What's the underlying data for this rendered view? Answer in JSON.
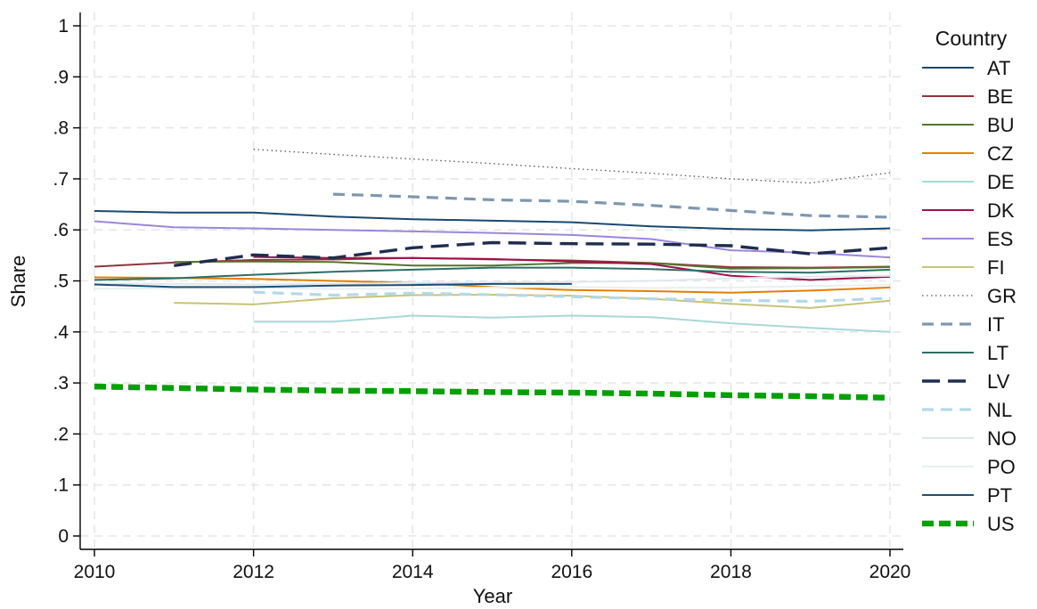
{
  "chart_data": {
    "type": "line",
    "xlabel": "Year",
    "ylabel": "Share",
    "xlim": [
      2010,
      2020
    ],
    "ylim": [
      0,
      1
    ],
    "x_ticks": [
      2010,
      2012,
      2014,
      2016,
      2018,
      2020
    ],
    "y_ticks": [
      0,
      0.1,
      0.2,
      0.3,
      0.4,
      0.5,
      0.6,
      0.7,
      0.8,
      0.9,
      1
    ],
    "y_tick_labels": [
      "0",
      ".1",
      ".2",
      ".3",
      ".4",
      ".5",
      ".6",
      ".7",
      ".8",
      ".9",
      "1"
    ],
    "x_tick_labels": [
      "2010",
      "2012",
      "2014",
      "2016",
      "2018",
      "2020"
    ],
    "grid": true,
    "legend": {
      "title": "Country",
      "position": "right"
    },
    "series": [
      {
        "name": "AT",
        "color": "#1a476f",
        "dash": "solid",
        "x": [
          2010,
          2011,
          2012,
          2013,
          2014,
          2015,
          2016,
          2017,
          2018,
          2019,
          2020
        ],
        "y": [
          0.637,
          0.634,
          0.634,
          0.626,
          0.621,
          0.618,
          0.615,
          0.607,
          0.602,
          0.599,
          0.603
        ]
      },
      {
        "name": "BE",
        "color": "#90353b",
        "dash": "solid",
        "x": [
          2010,
          2011,
          2012,
          2013,
          2014,
          2015,
          2016,
          2017,
          2018,
          2019,
          2020
        ],
        "y": [
          0.528,
          0.536,
          0.541,
          0.542,
          0.545,
          0.542,
          0.54,
          0.535,
          0.527,
          0.526,
          0.528
        ]
      },
      {
        "name": "BU",
        "color": "#55752f",
        "dash": "solid",
        "x": [
          2011,
          2012,
          2013,
          2014,
          2015,
          2016,
          2017,
          2018,
          2019,
          2020
        ],
        "y": [
          0.537,
          0.538,
          0.537,
          0.53,
          0.53,
          0.535,
          0.535,
          0.524,
          0.525,
          0.527
        ]
      },
      {
        "name": "CZ",
        "color": "#e37e00",
        "dash": "solid",
        "x": [
          2010,
          2011,
          2012,
          2013,
          2014,
          2015,
          2016,
          2017,
          2018,
          2019,
          2020
        ],
        "y": [
          0.507,
          0.506,
          0.504,
          0.5,
          0.496,
          0.488,
          0.482,
          0.48,
          0.477,
          0.481,
          0.487
        ]
      },
      {
        "name": "DE",
        "color": "#a8d8d8",
        "dash": "solid",
        "x": [
          2012,
          2013,
          2014,
          2015,
          2016,
          2017,
          2018,
          2019,
          2020
        ],
        "y": [
          0.42,
          0.42,
          0.432,
          0.428,
          0.432,
          0.429,
          0.417,
          0.408,
          0.4
        ]
      },
      {
        "name": "DK",
        "color": "#a0124a",
        "dash": "solid",
        "x": [
          2012,
          2013,
          2014,
          2015,
          2016,
          2017,
          2018,
          2019,
          2020
        ],
        "y": [
          0.547,
          0.545,
          0.545,
          0.543,
          0.538,
          0.533,
          0.51,
          0.502,
          0.508
        ]
      },
      {
        "name": "ES",
        "color": "#9b87d8",
        "dash": "solid",
        "x": [
          2010,
          2011,
          2012,
          2013,
          2014,
          2015,
          2016,
          2017,
          2018,
          2019,
          2020
        ],
        "y": [
          0.617,
          0.605,
          0.603,
          0.6,
          0.597,
          0.594,
          0.59,
          0.582,
          0.56,
          0.555,
          0.546
        ]
      },
      {
        "name": "FI",
        "color": "#c9c27a",
        "dash": "solid",
        "x": [
          2011,
          2012,
          2013,
          2014,
          2015,
          2016,
          2017,
          2018,
          2019,
          2020
        ],
        "y": [
          0.457,
          0.454,
          0.466,
          0.472,
          0.473,
          0.471,
          0.465,
          0.455,
          0.447,
          0.461
        ]
      },
      {
        "name": "GR",
        "color": "#555555",
        "dash": "dot",
        "x": [
          2012,
          2013,
          2014,
          2015,
          2016,
          2017,
          2018,
          2019,
          2020
        ],
        "y": [
          0.758,
          0.748,
          0.739,
          0.73,
          0.72,
          0.711,
          0.7,
          0.692,
          0.712
        ]
      },
      {
        "name": "IT",
        "color": "#7d97ad",
        "dash": "dash",
        "x": [
          2013,
          2014,
          2015,
          2016,
          2017,
          2018,
          2019,
          2020
        ],
        "y": [
          0.67,
          0.665,
          0.659,
          0.656,
          0.648,
          0.638,
          0.628,
          0.625
        ]
      },
      {
        "name": "LT",
        "color": "#2d6d66",
        "dash": "solid",
        "x": [
          2010,
          2011,
          2012,
          2013,
          2014,
          2015,
          2016,
          2017,
          2018,
          2019,
          2020
        ],
        "y": [
          0.502,
          0.505,
          0.512,
          0.518,
          0.522,
          0.526,
          0.526,
          0.523,
          0.518,
          0.516,
          0.522
        ]
      },
      {
        "name": "LV",
        "color": "#1f2d4e",
        "dash": "longdash",
        "x": [
          2011,
          2012,
          2013,
          2014,
          2015,
          2016,
          2017,
          2018,
          2019,
          2020
        ],
        "y": [
          0.53,
          0.551,
          0.545,
          0.565,
          0.575,
          0.573,
          0.572,
          0.569,
          0.553,
          0.565
        ]
      },
      {
        "name": "NL",
        "color": "#b3d9e6",
        "dash": "dash",
        "x": [
          2012,
          2013,
          2014,
          2015,
          2016,
          2017,
          2018,
          2019,
          2020
        ],
        "y": [
          0.478,
          0.472,
          0.476,
          0.473,
          0.469,
          0.465,
          0.462,
          0.46,
          0.466
        ]
      },
      {
        "name": "NO",
        "color": "#dde8ee",
        "dash": "solid",
        "x": [
          2010,
          2011,
          2012,
          2013,
          2014,
          2015,
          2016,
          2017,
          2018,
          2019,
          2020
        ],
        "y": [
          0.495,
          0.494,
          0.493,
          0.494,
          0.496,
          0.497,
          0.498,
          0.5,
          0.505,
          0.508,
          0.51
        ]
      },
      {
        "name": "PO",
        "color": "#e8eff1",
        "dash": "solid",
        "x": [
          2010,
          2011,
          2012,
          2013,
          2014,
          2015,
          2016,
          2017,
          2018,
          2019,
          2020
        ],
        "y": [
          0.485,
          0.485,
          0.486,
          0.484,
          0.485,
          0.487,
          0.488,
          0.486,
          0.487,
          0.49,
          0.492
        ]
      },
      {
        "name": "PT",
        "color": "#1f4e73",
        "dash": "solid",
        "x": [
          2010,
          2011,
          2012,
          2013,
          2014,
          2015,
          2016
        ],
        "y": [
          0.493,
          0.488,
          0.488,
          0.491,
          0.492,
          0.494,
          0.494
        ]
      },
      {
        "name": "US",
        "color": "#00a000",
        "dash": "thickdash",
        "x": [
          2010,
          2011,
          2012,
          2013,
          2014,
          2015,
          2016,
          2017,
          2018,
          2019,
          2020
        ],
        "y": [
          0.293,
          0.29,
          0.287,
          0.285,
          0.284,
          0.282,
          0.281,
          0.279,
          0.276,
          0.274,
          0.271
        ]
      }
    ]
  }
}
